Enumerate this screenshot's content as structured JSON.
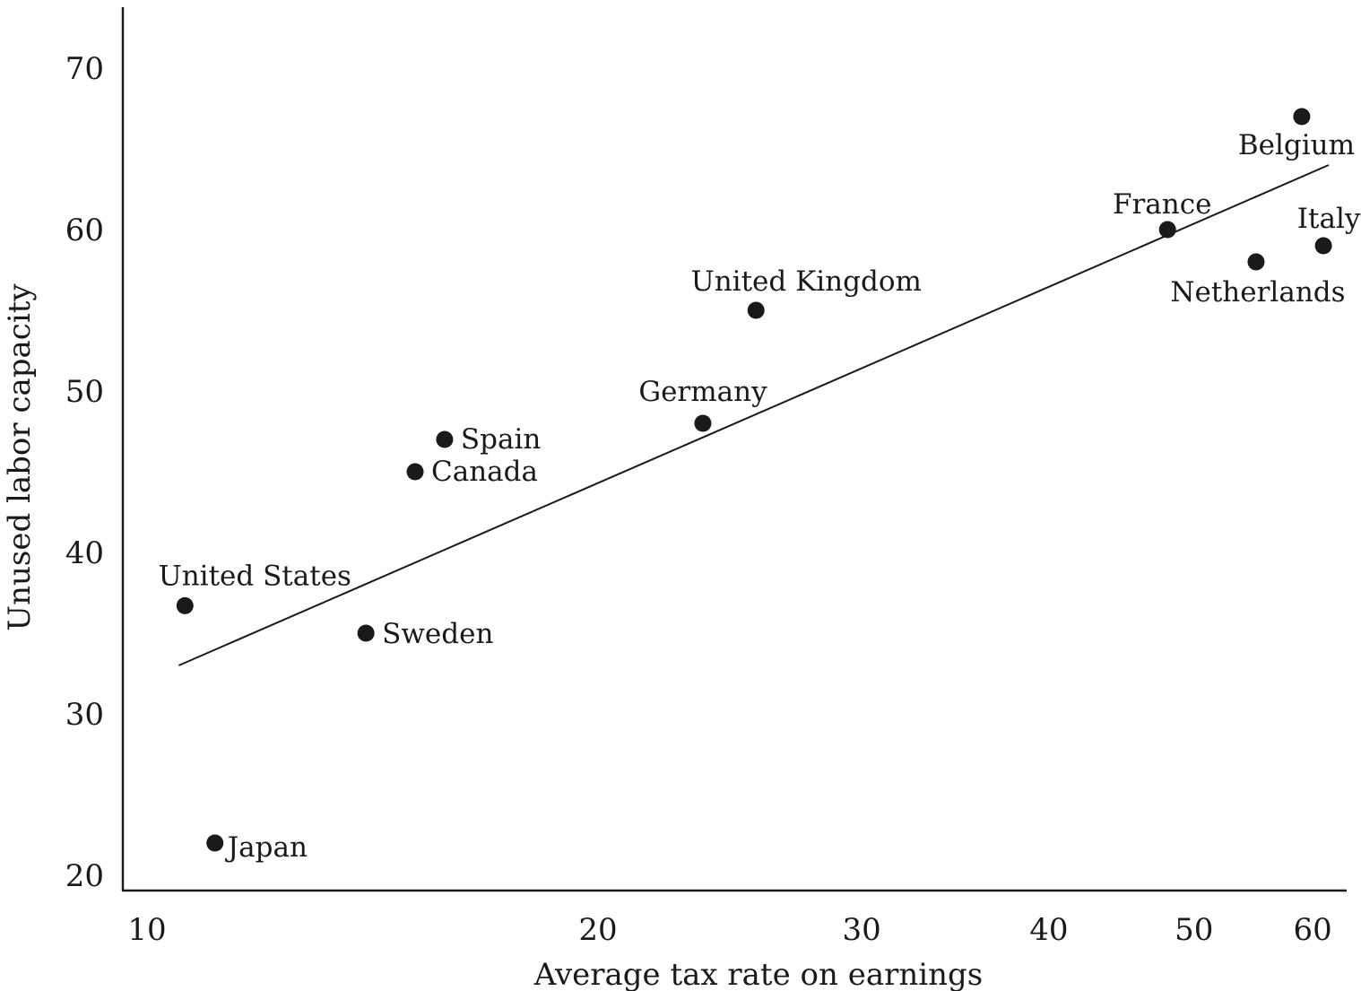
{
  "chart_data": {
    "type": "scatter",
    "xlabel": "Average tax rate on earnings",
    "ylabel": "Unused labor capacity",
    "x_scale": "log",
    "xlim": [
      10,
      63
    ],
    "ylim": [
      19.5,
      71
    ],
    "x_ticks": [
      10,
      20,
      30,
      40,
      50,
      60
    ],
    "y_ticks": [
      20,
      30,
      40,
      50,
      60,
      70
    ],
    "grid": false,
    "legend": "none",
    "points": [
      {
        "label": "Belgium",
        "x": 59,
        "y": 67
      },
      {
        "label": "France",
        "x": 48,
        "y": 60
      },
      {
        "label": "Italy",
        "x": 61,
        "y": 59
      },
      {
        "label": "Netherlands",
        "x": 55,
        "y": 58
      },
      {
        "label": "United Kingdom",
        "x": 25.5,
        "y": 55
      },
      {
        "label": "Germany",
        "x": 23.5,
        "y": 48
      },
      {
        "label": "Spain",
        "x": 15.8,
        "y": 47
      },
      {
        "label": "Canada",
        "x": 15.1,
        "y": 45
      },
      {
        "label": "United States",
        "x": 10.6,
        "y": 36.7
      },
      {
        "label": "Sweden",
        "x": 14,
        "y": 35
      },
      {
        "label": "Japan",
        "x": 11.1,
        "y": 22
      }
    ],
    "trendline": {
      "x": [
        10.5,
        61.5
      ],
      "y": [
        33,
        64
      ]
    }
  }
}
